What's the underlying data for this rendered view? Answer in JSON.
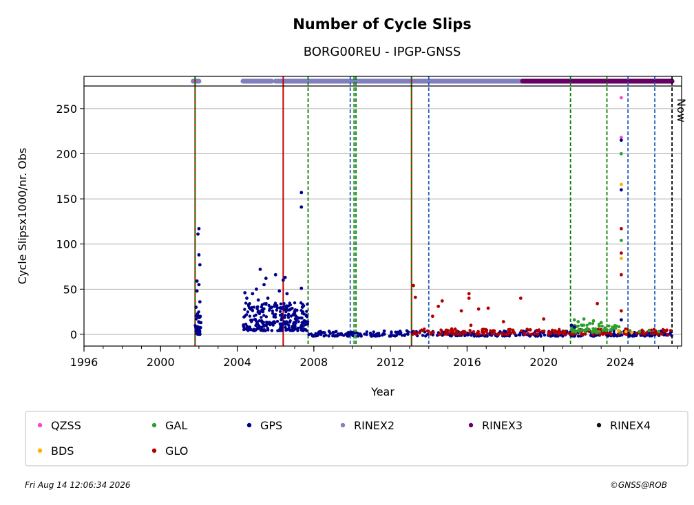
{
  "chart_data": {
    "type": "scatter",
    "title": "Number of Cycle Slips",
    "subtitle": "BORG00REU - IPGP-GNSS",
    "xlabel": "Year",
    "ylabel": "Cycle Slipsx1000/nr. Obs",
    "xlim": [
      1996,
      2027.2
    ],
    "ylim": [
      -13,
      275
    ],
    "x_ticks": [
      "1996",
      "2000",
      "2004",
      "2008",
      "2012",
      "2016",
      "2020",
      "2024"
    ],
    "y_ticks": [
      "0",
      "50",
      "100",
      "150",
      "200",
      "250"
    ],
    "grid": "horizontal",
    "now_label": "Now",
    "now_year": 2026.7,
    "vlines": [
      {
        "x": 2001.8,
        "color": "#cc0000",
        "style": "solid"
      },
      {
        "x": 2001.8,
        "color": "#008000",
        "style": "dashed"
      },
      {
        "x": 2006.4,
        "color": "#cc0000",
        "style": "solid"
      },
      {
        "x": 2007.7,
        "color": "#008000",
        "style": "dashed"
      },
      {
        "x": 2009.9,
        "color": "#1f5fbf",
        "style": "dashed"
      },
      {
        "x": 2010.1,
        "color": "#008000",
        "style": "dashed"
      },
      {
        "x": 2010.2,
        "color": "#008000",
        "style": "dashed"
      },
      {
        "x": 2013.1,
        "color": "#cc0000",
        "style": "solid"
      },
      {
        "x": 2013.1,
        "color": "#008000",
        "style": "dashed"
      },
      {
        "x": 2014.0,
        "color": "#1f5fbf",
        "style": "dashed"
      },
      {
        "x": 2021.4,
        "color": "#008000",
        "style": "dashed"
      },
      {
        "x": 2023.3,
        "color": "#008000",
        "style": "dashed"
      },
      {
        "x": 2024.4,
        "color": "#1f5fbf",
        "style": "dashed"
      },
      {
        "x": 2025.8,
        "color": "#1f5fbf",
        "style": "dashed"
      }
    ],
    "rinex_bar": [
      {
        "name": "RINEX2",
        "start": 2001.7,
        "end": 2002.0
      },
      {
        "name": "RINEX2",
        "start": 2004.3,
        "end": 2005.8
      },
      {
        "name": "RINEX2",
        "start": 2006.0,
        "end": 2018.9
      },
      {
        "name": "RINEX3",
        "start": 2018.9,
        "end": 2026.7
      }
    ],
    "series": [
      {
        "name": "QZSS",
        "color": "#ff44cc",
        "points": [
          [
            2024.05,
            262
          ],
          [
            2024.05,
            218
          ]
        ]
      },
      {
        "name": "BDS",
        "color": "#ffb000",
        "points": [
          [
            2024.05,
            166
          ],
          [
            2024.05,
            84
          ],
          [
            2023.9,
            4
          ],
          [
            2024.3,
            3
          ],
          [
            2024.6,
            2
          ]
        ]
      },
      {
        "name": "GAL",
        "color": "#2e9e2e",
        "points": [
          [
            2024.05,
            200
          ],
          [
            2024.05,
            104
          ],
          [
            2021.6,
            16
          ],
          [
            2021.8,
            14
          ],
          [
            2022.1,
            17
          ],
          [
            2022.4,
            12
          ],
          [
            2022.6,
            15
          ],
          [
            2022.9,
            9
          ],
          [
            2023.0,
            13
          ],
          [
            2023.2,
            7
          ],
          [
            2021.5,
            8
          ],
          [
            2022.0,
            10
          ],
          [
            2022.7,
            6
          ],
          [
            2023.5,
            5
          ],
          [
            2024.5,
            4
          ],
          [
            2025.0,
            3
          ],
          [
            2025.5,
            4
          ],
          [
            2026.0,
            3
          ]
        ]
      },
      {
        "name": "GLO",
        "color": "#b30000",
        "points": [
          [
            2013.2,
            54
          ],
          [
            2013.3,
            41
          ],
          [
            2014.2,
            20
          ],
          [
            2014.5,
            31
          ],
          [
            2014.7,
            37
          ],
          [
            2015.7,
            26
          ],
          [
            2016.1,
            45
          ],
          [
            2016.1,
            40
          ],
          [
            2016.6,
            28
          ],
          [
            2017.1,
            29
          ],
          [
            2017.9,
            14
          ],
          [
            2018.8,
            40
          ],
          [
            2020.0,
            17
          ],
          [
            2016.2,
            10
          ],
          [
            2015.2,
            6
          ],
          [
            2019.3,
            5
          ],
          [
            2020.6,
            4
          ],
          [
            2021.0,
            3
          ],
          [
            2022.8,
            34
          ],
          [
            2024.05,
            117
          ],
          [
            2024.05,
            90
          ],
          [
            2024.05,
            66
          ],
          [
            2024.05,
            26
          ],
          [
            2014.9,
            4
          ],
          [
            2016.8,
            5
          ],
          [
            2018.2,
            3
          ],
          [
            2025.2,
            3
          ]
        ]
      },
      {
        "name": "GPS",
        "color": "#00008b",
        "points": [
          [
            2001.9,
            59
          ],
          [
            2001.9,
            48
          ],
          [
            2001.95,
            111
          ],
          [
            2002.0,
            117
          ],
          [
            2002.0,
            88
          ],
          [
            2002.05,
            77
          ],
          [
            2002.0,
            55
          ],
          [
            2002.05,
            36
          ],
          [
            2001.85,
            30
          ],
          [
            2002.0,
            20
          ],
          [
            2002.1,
            13
          ],
          [
            2001.9,
            8
          ],
          [
            2002.0,
            3
          ],
          [
            2002.05,
            0
          ],
          [
            2004.4,
            46
          ],
          [
            2004.5,
            40
          ],
          [
            2004.6,
            33
          ],
          [
            2004.7,
            28
          ],
          [
            2004.8,
            45
          ],
          [
            2005.0,
            50
          ],
          [
            2005.1,
            38
          ],
          [
            2005.2,
            72
          ],
          [
            2005.4,
            55
          ],
          [
            2005.5,
            62
          ],
          [
            2005.6,
            40
          ],
          [
            2005.8,
            30
          ],
          [
            2006.0,
            66
          ],
          [
            2006.2,
            48
          ],
          [
            2006.4,
            60
          ],
          [
            2006.5,
            63
          ],
          [
            2006.6,
            45
          ],
          [
            2006.8,
            28
          ],
          [
            2007.0,
            24
          ],
          [
            2007.2,
            18
          ],
          [
            2007.35,
            157
          ],
          [
            2007.35,
            141
          ],
          [
            2007.35,
            51
          ],
          [
            2007.4,
            30
          ],
          [
            2007.5,
            15
          ],
          [
            2024.05,
            215
          ],
          [
            2024.05,
            160
          ],
          [
            2024.05,
            16
          ],
          [
            2021.45,
            10
          ],
          [
            2021.6,
            8
          ]
        ]
      }
    ],
    "bands": [
      {
        "series": "GPS",
        "x0": 2001.8,
        "x1": 2002.1,
        "lo": 0,
        "hi": 25,
        "n": 40
      },
      {
        "series": "GPS",
        "x0": 2004.3,
        "x1": 2007.7,
        "lo": 4,
        "hi": 35,
        "n": 260
      },
      {
        "series": "GPS",
        "x0": 2007.7,
        "x1": 2026.7,
        "lo": -2,
        "hi": 4,
        "n": 420
      },
      {
        "series": "GLO",
        "x0": 2013.1,
        "x1": 2026.7,
        "lo": 0,
        "hi": 6,
        "n": 200
      },
      {
        "series": "GAL",
        "x0": 2021.4,
        "x1": 2024.0,
        "lo": 2,
        "hi": 12,
        "n": 60
      }
    ],
    "legend": [
      {
        "label": "QZSS",
        "color": "#ff44cc"
      },
      {
        "label": "GAL",
        "color": "#2e9e2e"
      },
      {
        "label": "GPS",
        "color": "#00008b"
      },
      {
        "label": "RINEX2",
        "color": "#8080c0"
      },
      {
        "label": "RINEX3",
        "color": "#660066"
      },
      {
        "label": "RINEX4",
        "color": "#1a0a1a"
      },
      {
        "label": "BDS",
        "color": "#ffb000"
      },
      {
        "label": "GLO",
        "color": "#b30000"
      }
    ],
    "legend_location": "bottom"
  },
  "footer": {
    "timestamp": "Fri Aug 14 12:06:34 2026",
    "credit": "©GNSS@ROB"
  }
}
